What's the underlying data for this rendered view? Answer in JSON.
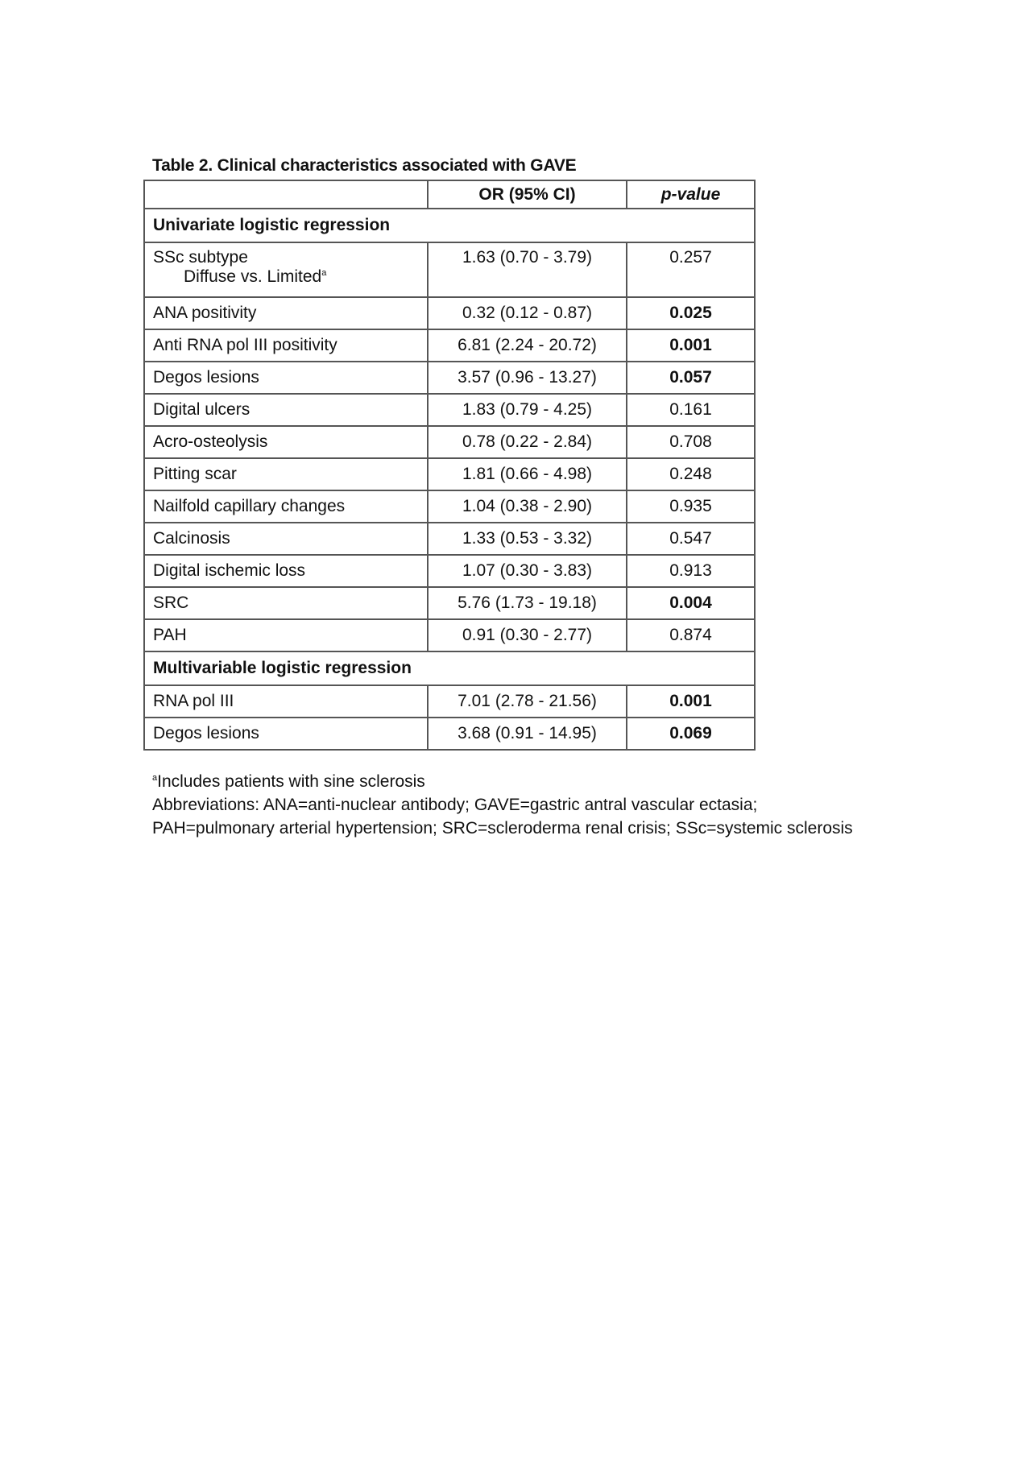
{
  "title": "Table 2. Clinical characteristics associated with GAVE",
  "header": {
    "col1": "",
    "col2": "OR (95% CI)",
    "col3": "p-value"
  },
  "sections": [
    {
      "label": "Univariate logistic regression",
      "rows": [
        {
          "name": "SSc subtype",
          "sub": "Diffuse vs. Limited",
          "sup": "a",
          "or": "1.63 (0.70 - 3.79)",
          "p": "0.257",
          "bold": false
        },
        {
          "name": "ANA positivity",
          "or": "0.32 (0.12 - 0.87)",
          "p": "0.025",
          "bold": true
        },
        {
          "name": "Anti RNA pol III positivity",
          "or": "6.81 (2.24 - 20.72)",
          "p": "0.001",
          "bold": true
        },
        {
          "name": "Degos lesions",
          "or": "3.57 (0.96 - 13.27)",
          "p": "0.057",
          "bold": true
        },
        {
          "name": "Digital ulcers",
          "or": "1.83 (0.79 - 4.25)",
          "p": "0.161",
          "bold": false
        },
        {
          "name": "Acro-osteolysis",
          "or": "0.78 (0.22 - 2.84)",
          "p": "0.708",
          "bold": false
        },
        {
          "name": "Pitting scar",
          "or": "1.81 (0.66 - 4.98)",
          "p": "0.248",
          "bold": false
        },
        {
          "name": "Nailfold capillary changes",
          "or": "1.04 (0.38 - 2.90)",
          "p": "0.935",
          "bold": false
        },
        {
          "name": "Calcinosis",
          "or": "1.33 (0.53 - 3.32)",
          "p": "0.547",
          "bold": false
        },
        {
          "name": "Digital ischemic loss",
          "or": "1.07 (0.30 - 3.83)",
          "p": "0.913",
          "bold": false
        },
        {
          "name": "SRC",
          "or": "5.76 (1.73 - 19.18)",
          "p": "0.004",
          "bold": true
        },
        {
          "name": "PAH",
          "or": "0.91 (0.30 - 2.77)",
          "p": "0.874",
          "bold": false
        }
      ]
    },
    {
      "label": "Multivariable logistic regression",
      "rows": [
        {
          "name": "RNA pol III",
          "or": "7.01 (2.78 - 21.56)",
          "p": "0.001",
          "bold": true
        },
        {
          "name": "Degos lesions",
          "or": "3.68 (0.91 - 14.95)",
          "p": "0.069",
          "bold": true
        }
      ]
    }
  ],
  "footnotes": {
    "sup": "a",
    "note": "Includes patients with sine sclerosis",
    "abbreviations": "Abbreviations: ANA=anti-nuclear antibody; GAVE=gastric antral vascular ectasia; PAH=pulmonary arterial hypertension; SRC=scleroderma renal crisis; SSc=systemic sclerosis"
  }
}
